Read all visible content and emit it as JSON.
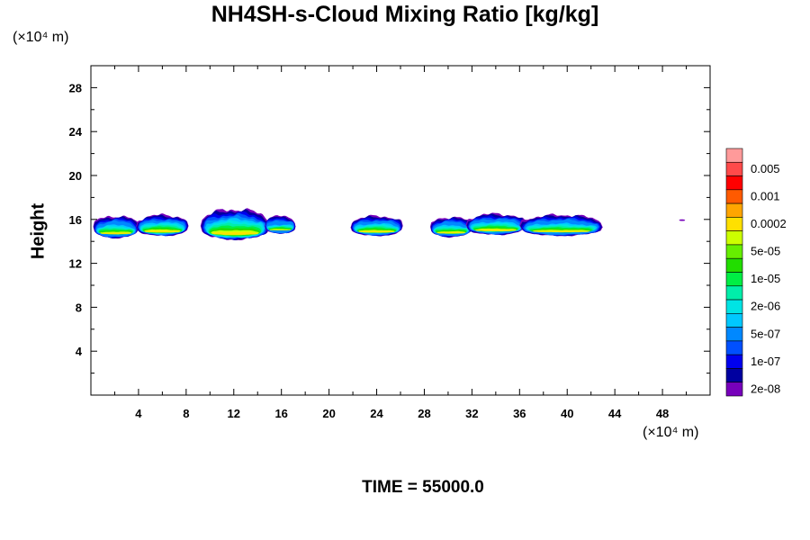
{
  "chart_data": {
    "type": "heatmap",
    "title": "NH4SH-s-Cloud Mixing Ratio [kg/kg]",
    "ylabel": "Height",
    "xlabel": "",
    "x_unit": "(×10⁴ m)",
    "y_unit": "(×10⁴ m)",
    "xlim": [
      0,
      52
    ],
    "ylim": [
      0,
      30
    ],
    "x_ticks": [
      4,
      8,
      12,
      16,
      20,
      24,
      28,
      32,
      36,
      40,
      44,
      48
    ],
    "y_ticks": [
      4,
      8,
      12,
      16,
      20,
      24,
      28
    ],
    "colorbar": {
      "labels": [
        "0.005",
        "0.001",
        "0.0002",
        "5e-05",
        "1e-05",
        "2e-06",
        "5e-07",
        "1e-07",
        "2e-08"
      ],
      "colors": [
        "#ff9a9a",
        "#ff4a4a",
        "#ff0000",
        "#ff5a00",
        "#ffa500",
        "#ffe000",
        "#ccff00",
        "#66ee00",
        "#22dd00",
        "#00ee44",
        "#00eeaa",
        "#00e4e4",
        "#00c8ff",
        "#0088ff",
        "#0050ff",
        "#0000ee",
        "#0000a0",
        "#7700bb"
      ]
    },
    "cloud_segments": [
      {
        "x_start": 0.2,
        "x_end": 4.0,
        "base": 14.2,
        "top": 16.3,
        "core": 0.7
      },
      {
        "x_start": 3.8,
        "x_end": 8.2,
        "base": 14.4,
        "top": 16.4,
        "core": 0.9
      },
      {
        "x_start": 9.2,
        "x_end": 15.0,
        "base": 14.0,
        "top": 16.9,
        "core": 1.0
      },
      {
        "x_start": 14.6,
        "x_end": 17.2,
        "base": 14.6,
        "top": 16.3,
        "core": 0.5
      },
      {
        "x_start": 21.8,
        "x_end": 26.2,
        "base": 14.4,
        "top": 16.3,
        "core": 0.8
      },
      {
        "x_start": 28.5,
        "x_end": 32.0,
        "base": 14.3,
        "top": 16.2,
        "core": 0.7
      },
      {
        "x_start": 31.5,
        "x_end": 36.5,
        "base": 14.5,
        "top": 16.5,
        "core": 0.8
      },
      {
        "x_start": 36.0,
        "x_end": 43.0,
        "base": 14.4,
        "top": 16.4,
        "core": 0.7
      },
      {
        "x_start": 49.4,
        "x_end": 49.9,
        "base": 15.85,
        "top": 16.0,
        "core": 0.0
      }
    ]
  },
  "time_label": "TIME = 55000.0"
}
